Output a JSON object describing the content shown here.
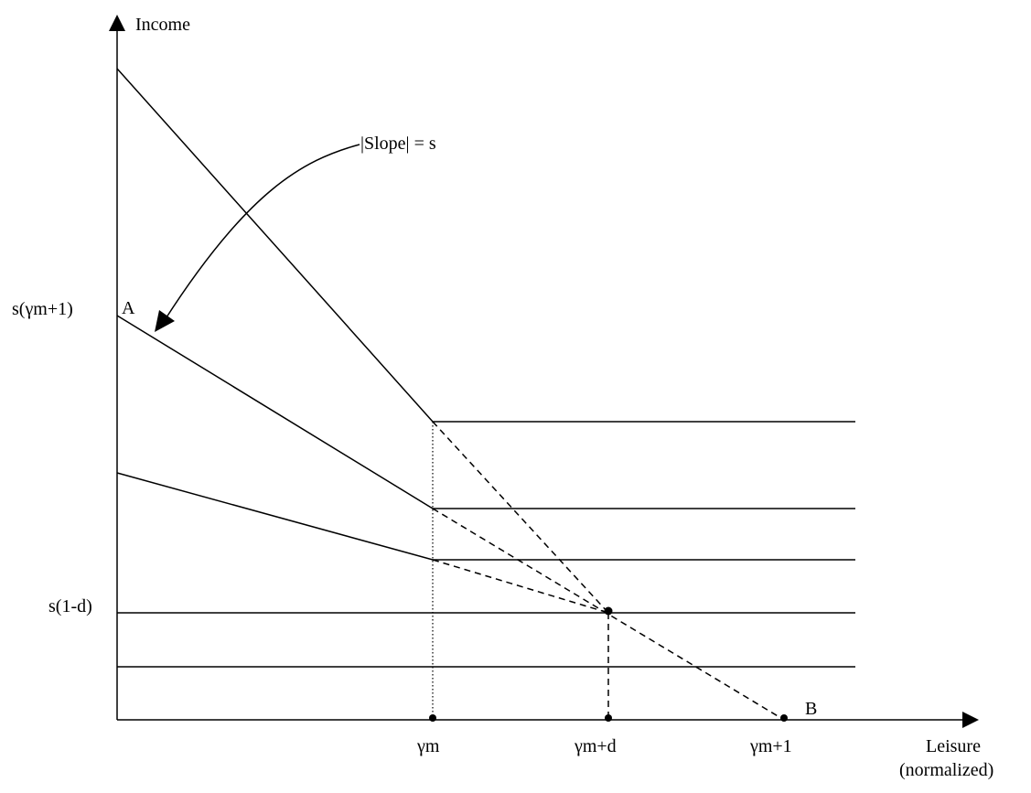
{
  "axes": {
    "y_label": "Income",
    "x_label_line1": "Leisure",
    "x_label_line2": "(normalized)"
  },
  "y_ticks": {
    "top": "s(γm+1)",
    "bottom": "s(1-d)"
  },
  "x_ticks": {
    "left": "γm",
    "middle": "γm+d",
    "right": "γm+1"
  },
  "points": {
    "a": "A",
    "b": "B"
  },
  "annotation": {
    "text": "|Slope| = s"
  }
}
